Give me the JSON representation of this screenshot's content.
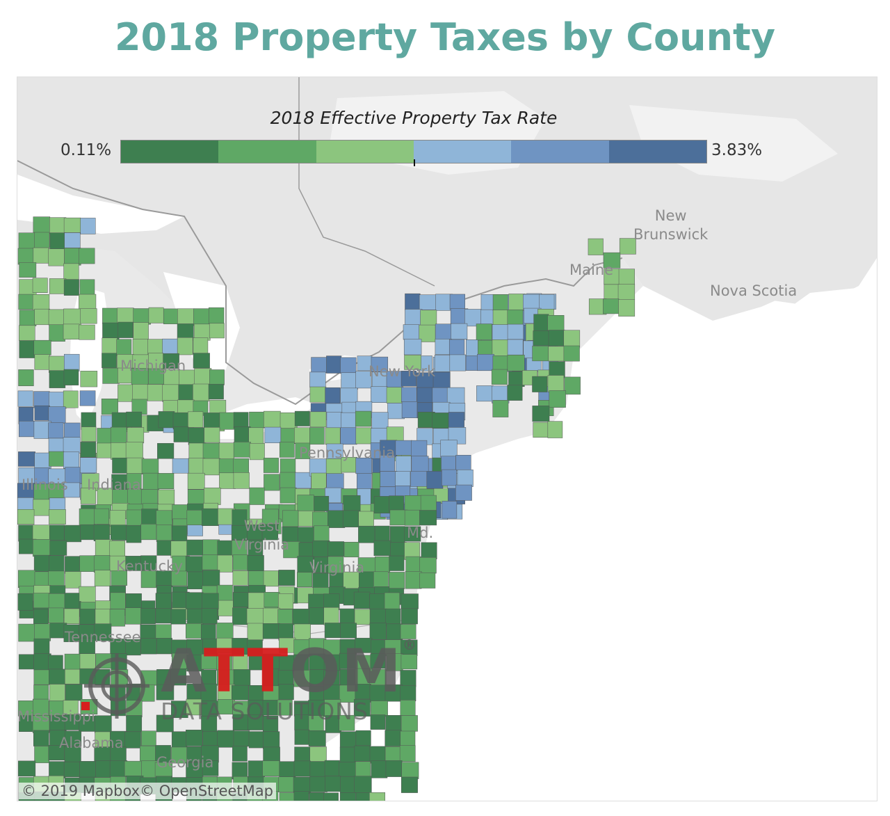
{
  "title": "2018 Property Taxes by County",
  "legend": {
    "title": "2018 Effective Property Tax Rate",
    "min_label": "0.11%",
    "max_label": "3.83%",
    "colors": [
      "#3e7f50",
      "#5fa865",
      "#8cc57e",
      "#8fb5d8",
      "#6f94c2",
      "#4c6f9a"
    ]
  },
  "places": {
    "new_brunswick": "New\nBrunswick",
    "maine": "Maine",
    "nova_scotia": "Nova Scotia",
    "michigan": "Michigan",
    "new_york": "New York",
    "pennsylvania": "Pennsylvania",
    "illinois": "Illinois",
    "indiana": "Indiana",
    "west_virginia": "West\nVirginia",
    "kentucky": "Kentucky",
    "virginia": "Virginia",
    "maryland": "Md.",
    "tennessee": "Tennessee",
    "mississippi": "Mississippi",
    "alabama": "Alabama",
    "georgia": "Georgia"
  },
  "watermark": {
    "word_a": "A",
    "word_tt": "TT",
    "word_om": "OM",
    "registered": "®",
    "sub": "DATA SOLUTIONS"
  },
  "attribution": "© 2019 Mapbox© OpenStreetMap"
}
